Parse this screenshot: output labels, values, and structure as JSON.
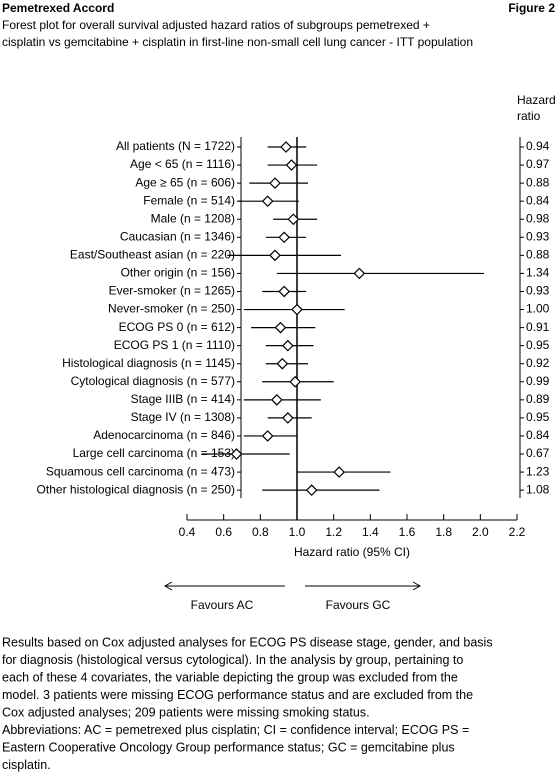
{
  "header": {
    "title": "Pemetrexed Accord",
    "figure": "Figure 2"
  },
  "chart_data": {
    "type": "forest",
    "title": [
      "Forest plot for overall survival adjusted hazard ratios of subgroups pemetrexed +",
      "cisplatin vs gemcitabine + cisplatin in first-line non-small cell lung cancer - ITT population"
    ],
    "column_header": [
      "Hazard",
      "ratio"
    ],
    "xlabel": "Hazard ratio (95% CI)",
    "favours": [
      "Favours AC",
      "Favours GC"
    ],
    "categories": [
      "All patients (N = 1722)",
      "Age < 65 (n = 1116)",
      "Age ≥ 65 (n = 606)",
      "Female (n = 514)",
      "Male (n = 1208)",
      "Caucasian (n = 1346)",
      "East/Southeast asian (n = 220)",
      "Other origin (n = 156)",
      "Ever-smoker (n = 1265)",
      "Never-smoker (n = 250)",
      "ECOG PS 0 (n = 612)",
      "ECOG PS 1 (n = 1110)",
      "Histological diagnosis (n = 1145)",
      "Cytological diagnosis (n = 577)",
      "Stage IIIB (n = 414)",
      "Stage IV (n = 1308)",
      "Adenocarcinoma (n = 846)",
      "Large cell carcinoma (n = 153)",
      "Squamous cell carcinoma (n = 473)",
      "Other histological diagnosis (n = 250)"
    ],
    "values": [
      0.94,
      0.97,
      0.88,
      0.84,
      0.98,
      0.93,
      0.88,
      1.34,
      0.93,
      1.0,
      0.91,
      0.95,
      0.92,
      0.99,
      0.89,
      0.95,
      0.84,
      0.67,
      1.23,
      1.08
    ],
    "value_labels": [
      "0.94",
      "0.97",
      "0.88",
      "0.84",
      "0.98",
      "0.93",
      "0.88",
      "1.34",
      "0.93",
      "1.00",
      "0.91",
      "0.95",
      "0.92",
      "0.99",
      "0.89",
      "0.95",
      "0.84",
      "0.67",
      "1.23",
      "1.08"
    ],
    "lower": [
      0.84,
      0.84,
      0.74,
      0.68,
      0.87,
      0.83,
      0.62,
      0.89,
      0.81,
      0.71,
      0.75,
      0.83,
      0.83,
      0.81,
      0.71,
      0.84,
      0.71,
      0.48,
      1.0,
      0.81
    ],
    "upper": [
      1.05,
      1.11,
      1.06,
      1.01,
      1.11,
      1.05,
      1.24,
      2.02,
      1.05,
      1.26,
      1.1,
      1.09,
      1.06,
      1.2,
      1.13,
      1.08,
      1.0,
      0.96,
      1.51,
      1.45
    ],
    "xlim": [
      0.4,
      2.2
    ],
    "xticks": [
      0.4,
      0.6,
      0.8,
      {
        "value": 1.0,
        "label": "1.0"
      },
      1.2,
      1.4,
      1.6,
      1.8,
      {
        "value": 2.0,
        "label": "2.0"
      },
      2.2
    ],
    "reference": 1
  },
  "footnote": [
    "Results based on Cox adjusted analyses for ECOG PS disease stage, gender, and basis",
    "for diagnosis (histological versus cytological).  In the analysis by group, pertaining to",
    "each of these 4 covariates, the variable depicting the group was excluded from the",
    "model.  3 patients were missing ECOG performance status and are excluded from the",
    "Cox adjusted analyses; 209 patients were missing smoking status.",
    "Abbreviations: AC = pemetrexed plus cisplatin; CI = confidence interval; ECOG PS =",
    "Eastern Cooperative Oncology Group performance status; GC = gemcitabine plus",
    "cisplatin."
  ]
}
